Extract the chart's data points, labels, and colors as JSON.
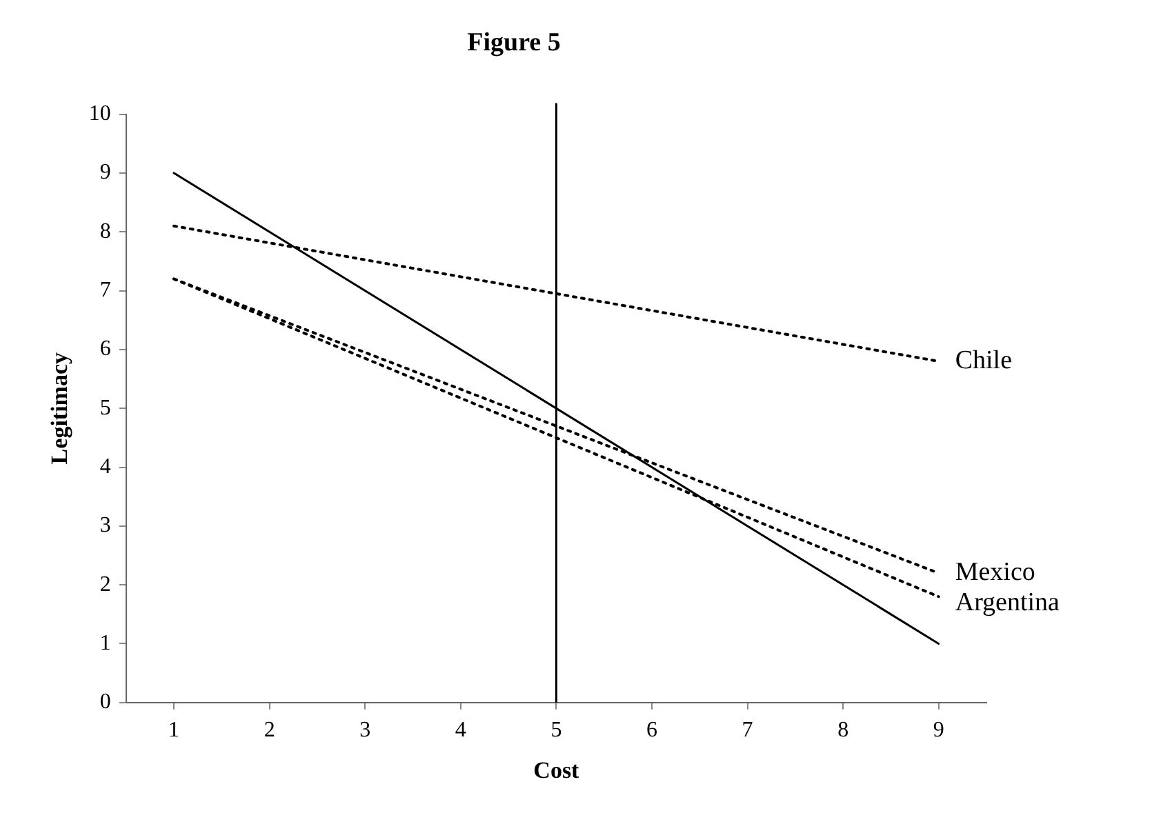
{
  "chart_data": {
    "type": "line",
    "title": "Figure 5",
    "xlabel": "Cost",
    "ylabel": "Legitimacy",
    "x": [
      1,
      9
    ],
    "series": [
      {
        "color": "#000000",
        "values": [
          9,
          1
        ],
        "line_style": "solid"
      },
      {
        "name": "Chile",
        "color": "#000000",
        "values": [
          8.1,
          5.8
        ],
        "line_style": "dotted"
      },
      {
        "name": "Mexico",
        "color": "#000000",
        "values": [
          7.2,
          2.2
        ],
        "line_style": "dotted"
      },
      {
        "name": "Argentina",
        "color": "#000000",
        "values": [
          7.2,
          1.8
        ],
        "line_style": "dotted"
      }
    ],
    "xlim": [
      0.5,
      9.5
    ],
    "xticks": [
      1,
      2,
      3,
      4,
      5,
      6,
      7,
      8,
      9
    ],
    "ylim": [
      0,
      10
    ],
    "yticks": [
      0,
      1,
      2,
      3,
      4,
      5,
      6,
      7,
      8,
      9,
      10
    ],
    "ref_lines": [
      {
        "axis": "x",
        "value": 5,
        "color": "#000000",
        "line_style": "solid"
      }
    ],
    "grid": false,
    "legend": false,
    "marker": "none"
  }
}
